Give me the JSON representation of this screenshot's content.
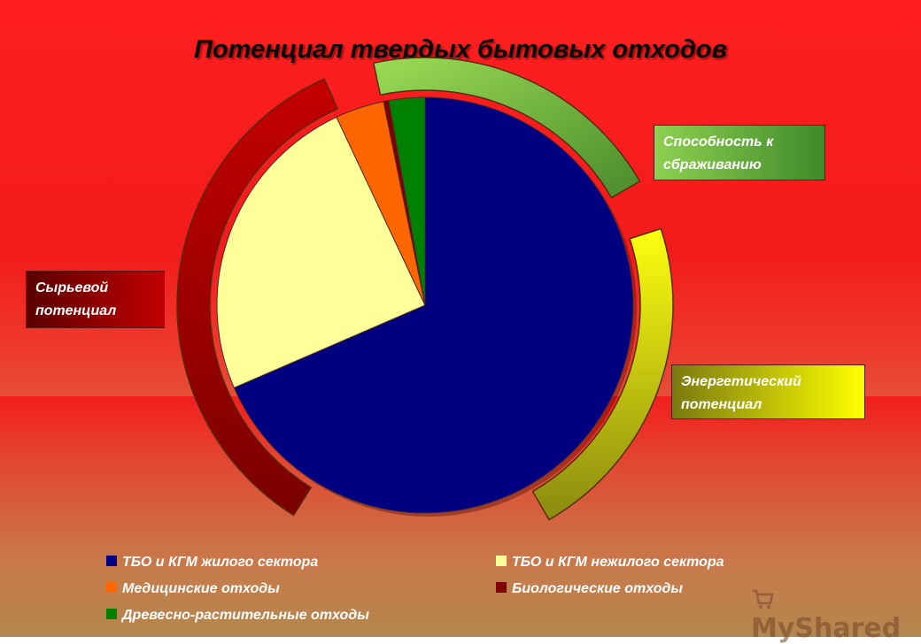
{
  "chart_data": {
    "type": "pie",
    "title": "Потенциал твердых бытовых отходов",
    "slices": [
      {
        "label": "ТБО и КГМ жилого сектора",
        "value": 68.5,
        "color": "#000080"
      },
      {
        "label": "ТБО и КГМ нежилого сектора",
        "value": 24.5,
        "color": "#ffff99"
      },
      {
        "label": "Медицинские отходы",
        "value": 3.8,
        "color": "#ff6600"
      },
      {
        "label": "Биологические отходы",
        "value": 0.4,
        "color": "#800000"
      },
      {
        "label": "Древесно-растительные отходы",
        "value": 2.8,
        "color": "#008000"
      }
    ],
    "groups": [
      {
        "label": "Способность к сбраживанию",
        "color": "#6fb83c"
      },
      {
        "label": "Сырьевой потенциал",
        "color": "#a00000"
      },
      {
        "label": "Энергетический потенциал",
        "color": "#e6e600"
      }
    ],
    "legend_position": "bottom"
  },
  "watermark": "MyShared"
}
